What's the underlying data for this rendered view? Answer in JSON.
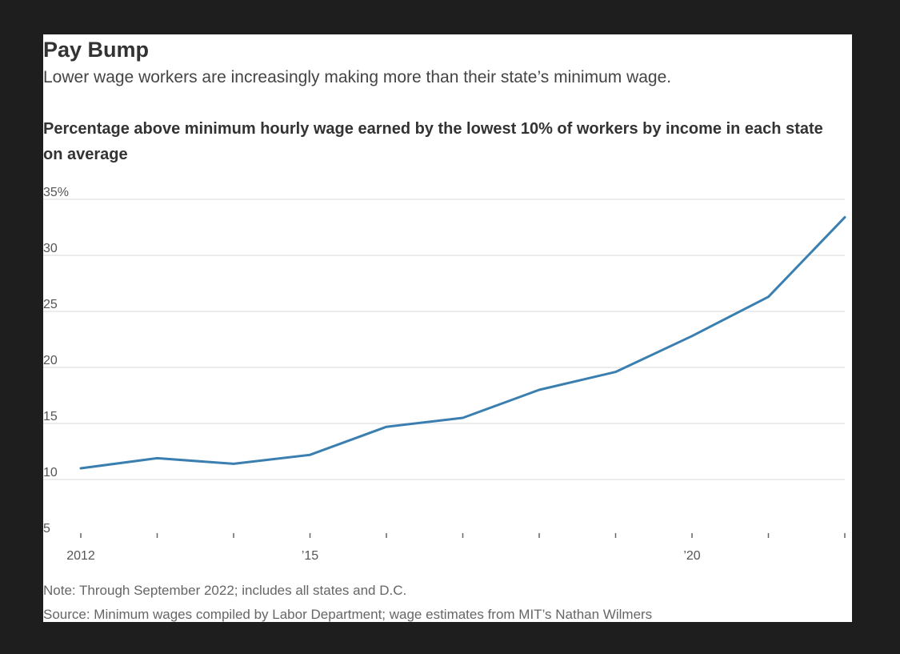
{
  "header": {
    "title": "Pay Bump",
    "subtitle": "Lower wage workers are increasingly making more than their state’s minimum wage."
  },
  "chart_heading": "Percentage above minimum hourly wage earned by the lowest 10% of workers by income in each state on average",
  "footer": {
    "note": "Note: Through September 2022; includes all states and D.C.",
    "source": "Source: Minimum wages compiled by Labor Department; wage estimates from MIT’s Nathan Wilmers"
  },
  "chart_data": {
    "type": "line",
    "title": "Percentage above minimum hourly wage earned by the lowest 10% of workers by income in each state on average",
    "xlabel": "",
    "ylabel": "",
    "x": [
      2012,
      2013,
      2014,
      2015,
      2016,
      2017,
      2018,
      2019,
      2020,
      2021,
      2022
    ],
    "series": [
      {
        "values": [
          11.0,
          11.9,
          11.4,
          12.2,
          14.7,
          15.5,
          18.0,
          19.6,
          22.8,
          26.3,
          33.4
        ]
      }
    ],
    "ylim": [
      5,
      35
    ],
    "y_ticks": [
      5,
      10,
      15,
      20,
      25,
      30,
      35
    ],
    "y_tick_labels": [
      "5",
      "10",
      "15",
      "20",
      "25",
      "30",
      "35%"
    ],
    "x_ticks": [
      2012,
      2013,
      2014,
      2015,
      2016,
      2017,
      2018,
      2019,
      2020,
      2021,
      2022
    ],
    "x_tick_labels": [
      {
        "x": 2012,
        "label": "2012"
      },
      {
        "x": 2015,
        "label": "’15"
      },
      {
        "x": 2020,
        "label": "’20"
      }
    ],
    "grid": true,
    "line_color": "#3a7fb0",
    "grid_color": "#e6e6e6",
    "axis_color": "#666666"
  }
}
